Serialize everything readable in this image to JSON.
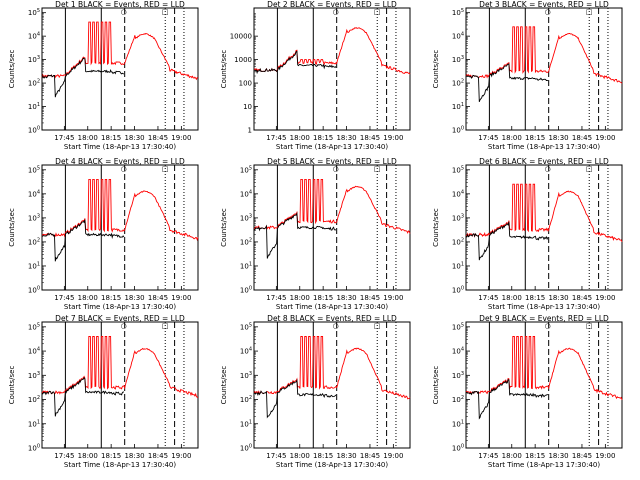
{
  "chart_data": {
    "type": "line",
    "xlabel": "Start Time (18-Apr-13 17:30:40)",
    "ylabel": "Counts/sec",
    "x_ticks": [
      "17:45",
      "18:00",
      "18:15",
      "18:30",
      "18:45",
      "19:00"
    ],
    "x_tick_minutes": [
      14.33,
      29.33,
      44.33,
      59.33,
      74.33,
      89.33
    ],
    "xlim_minutes": [
      0,
      100
    ],
    "y_ticks_log": [
      "10^0",
      "10^1",
      "10^2",
      "10^3",
      "10^4",
      "10^5"
    ],
    "y_ticks_det2": [
      "1",
      "10",
      "100",
      "1000",
      "10000"
    ],
    "ylim_log10": [
      0,
      5.2
    ],
    "markers": {
      "solid_at_minutes": [
        15.0,
        38.0
      ],
      "dashed_at_minutes": [
        53.0,
        85.0
      ],
      "dotted_at_minutes": [
        79.0,
        91.0
      ],
      "symbols": [
        "□",
        "○"
      ]
    },
    "colors": {
      "events": "#000000",
      "lld": "#ff0000"
    },
    "panels": [
      {
        "det": "1",
        "title": "Det 1 BLACK = Events, RED = LLD",
        "base": 2.3,
        "pre": 1.4,
        "orbit": 2.5,
        "lld_orbit": 2.85,
        "peak": 4.1,
        "spike": 4.6,
        "tail": 2.35,
        "y_ticks": "log"
      },
      {
        "det": "2",
        "title": "Det 2 BLACK = Events, RED = LLD",
        "base": 2.55,
        "pre": 2.5,
        "orbit": 2.75,
        "lld_orbit": 2.85,
        "peak": 4.35,
        "spike": 3.0,
        "tail": 2.55,
        "y_ticks": "linear"
      },
      {
        "det": "3",
        "title": "Det 3 BLACK = Events, RED = LLD",
        "base": 2.3,
        "pre": 1.2,
        "orbit": 2.2,
        "lld_orbit": 2.5,
        "peak": 4.1,
        "spike": 4.4,
        "tail": 2.2,
        "y_ticks": "log"
      },
      {
        "det": "4",
        "title": "Det 4 BLACK = Events, RED = LLD",
        "base": 2.3,
        "pre": 1.2,
        "orbit": 2.3,
        "lld_orbit": 2.5,
        "peak": 4.1,
        "spike": 4.6,
        "tail": 2.3,
        "y_ticks": "log"
      },
      {
        "det": "5",
        "title": "Det 5 BLACK = Events, RED = LLD",
        "base": 2.6,
        "pre": 1.3,
        "orbit": 2.6,
        "lld_orbit": 2.85,
        "peak": 4.3,
        "spike": 4.6,
        "tail": 2.55,
        "y_ticks": "log"
      },
      {
        "det": "6",
        "title": "Det 6 BLACK = Events, RED = LLD",
        "base": 2.3,
        "pre": 1.2,
        "orbit": 2.2,
        "lld_orbit": 2.5,
        "peak": 4.1,
        "spike": 4.4,
        "tail": 2.2,
        "y_ticks": "log"
      },
      {
        "det": "7",
        "title": "Det 7 BLACK = Events, RED = LLD",
        "base": 2.3,
        "pre": 1.3,
        "orbit": 2.3,
        "lld_orbit": 2.5,
        "peak": 4.1,
        "spike": 4.6,
        "tail": 2.3,
        "y_ticks": "log"
      },
      {
        "det": "8",
        "title": "Det 8 BLACK = Events, RED = LLD",
        "base": 2.3,
        "pre": 1.2,
        "orbit": 2.2,
        "lld_orbit": 2.5,
        "peak": 4.1,
        "spike": 4.6,
        "tail": 2.2,
        "y_ticks": "log"
      },
      {
        "det": "9",
        "title": "Det 9 BLACK = Events, RED = LLD",
        "base": 2.3,
        "pre": 1.2,
        "orbit": 2.2,
        "lld_orbit": 2.5,
        "peak": 4.1,
        "spike": 4.6,
        "tail": 2.2,
        "y_ticks": "log"
      }
    ]
  }
}
